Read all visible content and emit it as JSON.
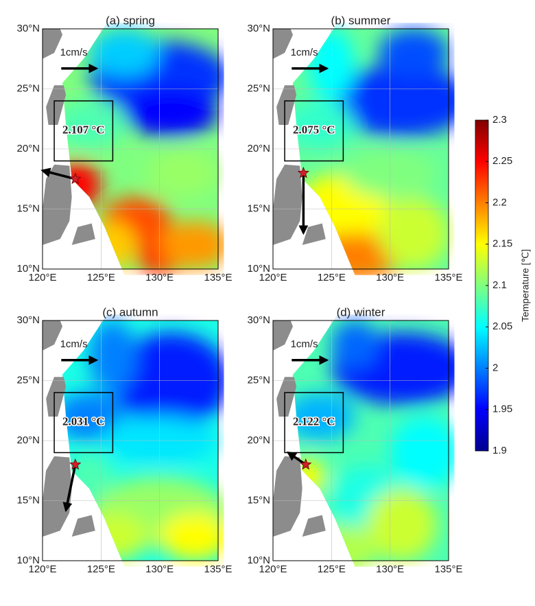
{
  "maps": {
    "xlim": [
      120,
      135
    ],
    "ylim": [
      10,
      30
    ],
    "xticks": [
      {
        "value": 120,
        "label": "120°E"
      },
      {
        "value": 125,
        "label": "125°E"
      },
      {
        "value": 130,
        "label": "130°E"
      },
      {
        "value": 135,
        "label": "135°E"
      }
    ],
    "yticks": [
      {
        "value": 10,
        "label": "10°N"
      },
      {
        "value": 15,
        "label": "15°N"
      },
      {
        "value": 20,
        "label": "20°N"
      },
      {
        "value": 25,
        "label": "25°N"
      },
      {
        "value": 30,
        "label": "30°N"
      }
    ],
    "panels": [
      {
        "title": "(a) spring",
        "box_label": "2.107 °C",
        "scale_label": "1cm/s"
      },
      {
        "title": "(b) summer",
        "box_label": "2.075 °C",
        "scale_label": "1cm/s"
      },
      {
        "title": "(c) autumn",
        "box_label": "2.031 °C",
        "scale_label": "1cm/s"
      },
      {
        "title": "(d) winter",
        "box_label": "2.122 °C",
        "scale_label": "1cm/s"
      }
    ]
  },
  "colorbar": {
    "label": "Temperature [℃]",
    "lim": [
      1.9,
      2.3
    ],
    "ticks": [
      1.9,
      1.95,
      2,
      2.05,
      2.1,
      2.15,
      2.2,
      2.25,
      2.3
    ]
  }
}
